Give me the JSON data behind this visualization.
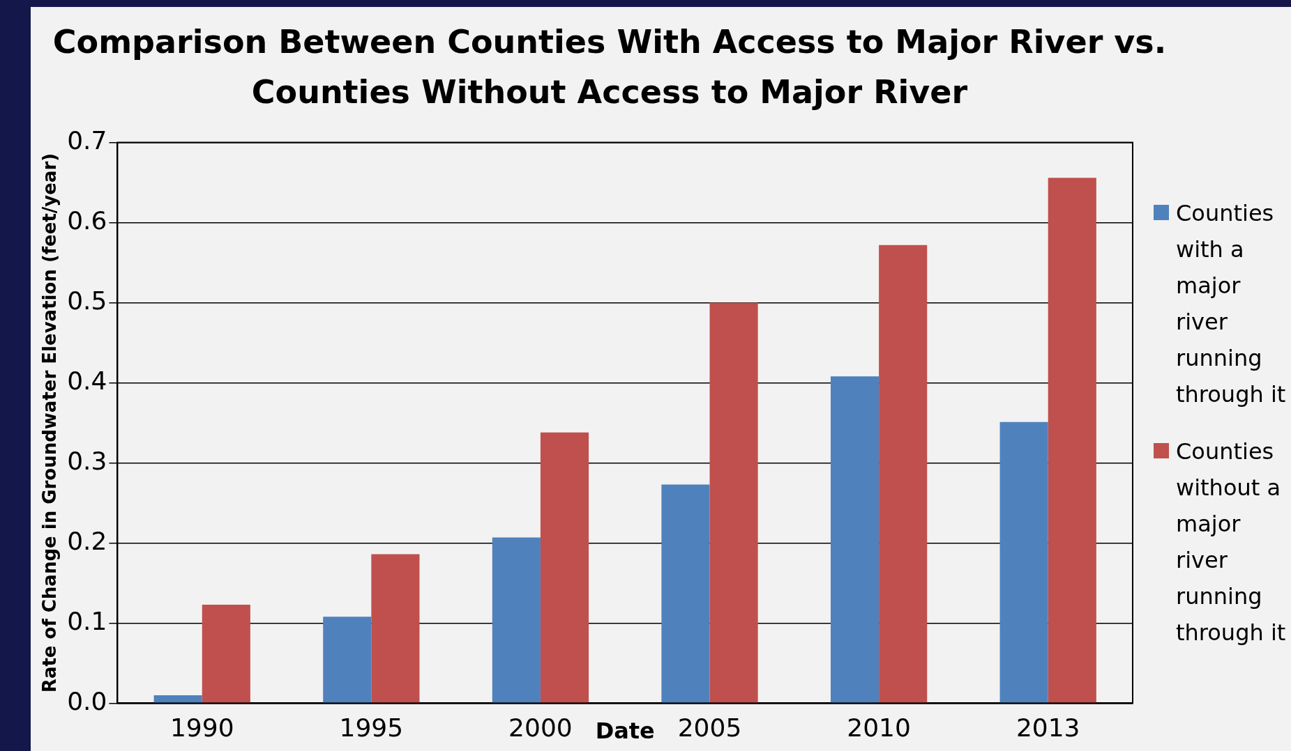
{
  "chart_data": {
    "type": "bar",
    "title": "Comparison Between Counties With Access to Major River vs. Counties Without Access to Major River",
    "xlabel": "Date",
    "ylabel": "Rate of Change in Groundwater Elevation (feet/year)",
    "categories": [
      "1990",
      "1995",
      "2000",
      "2005",
      "2010",
      "2013"
    ],
    "series": [
      {
        "name": "Counties with a major river running through it",
        "color": "#4f81bd",
        "values": [
          0.01,
          0.108,
          0.207,
          0.273,
          0.408,
          0.351
        ]
      },
      {
        "name": "Counties without a major river running through it",
        "color": "#c0504d",
        "values": [
          0.123,
          0.186,
          0.338,
          0.5,
          0.572,
          0.656
        ]
      }
    ],
    "ylim": [
      0,
      0.7
    ],
    "yticks": [
      {
        "value": 0,
        "label": "0.0"
      },
      {
        "value": 0.1,
        "label": "0.1"
      },
      {
        "value": 0.2,
        "label": "0.2"
      },
      {
        "value": 0.3,
        "label": "0.3"
      },
      {
        "value": 0.4,
        "label": "0.4"
      },
      {
        "value": 0.5,
        "label": "0.5"
      },
      {
        "value": 0.6,
        "label": "0.6"
      },
      {
        "value": 0.7,
        "label": "0.7"
      }
    ],
    "grid": "y",
    "legend": "right"
  }
}
